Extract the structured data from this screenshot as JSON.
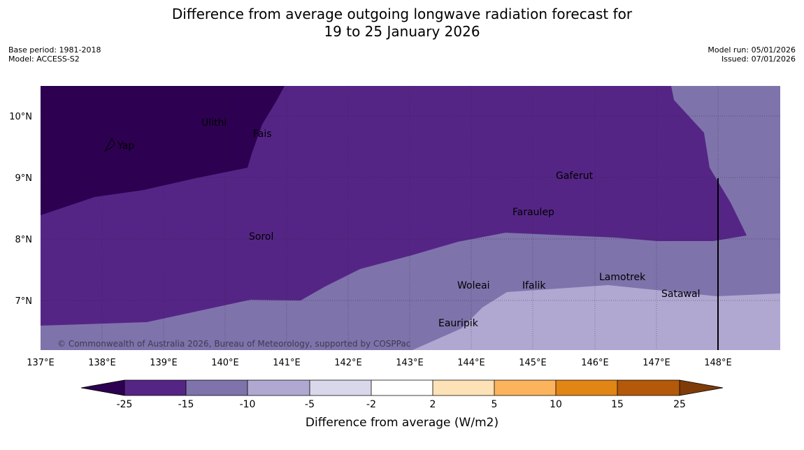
{
  "title": {
    "line1": "Difference from average outgoing longwave radiation forecast for",
    "line2": "19 to 25 January 2026"
  },
  "meta_left": {
    "base_period": "Base period: 1981-2018",
    "model": "Model: ACCESS-S2"
  },
  "meta_right": {
    "model_run": "Model run: 05/01/2026",
    "issued": "Issued: 07/01/2026"
  },
  "axes": {
    "lat_labels": [
      "10°N",
      "9°N",
      "8°N",
      "7°N"
    ],
    "lon_labels": [
      "137°E",
      "138°E",
      "139°E",
      "140°E",
      "141°E",
      "142°E",
      "143°E",
      "144°E",
      "145°E",
      "146°E",
      "147°E",
      "148°E"
    ]
  },
  "places": [
    "Ulithi",
    "Fais",
    "Yap",
    "Gaferut",
    "Faraulep",
    "Sorol",
    "Woleai",
    "Ifalik",
    "Lamotrek",
    "Satawal",
    "Eauripik"
  ],
  "copyright": "© Commonwealth of Australia 2026, Bureau of Meteorology, supported by COSPPac",
  "colorbar": {
    "ticks": [
      "-25",
      "-15",
      "-10",
      "-5",
      "-2",
      "2",
      "5",
      "10",
      "15",
      "25"
    ],
    "colors": [
      "#2d0051",
      "#552586",
      "#7f73ab",
      "#b1a8d2",
      "#d8d8ea",
      "#ffffff",
      "#fde1b7",
      "#fbb35c",
      "#e18515",
      "#b35909",
      "#7f3b08"
    ],
    "title": "Difference from average (W/m2)"
  }
}
